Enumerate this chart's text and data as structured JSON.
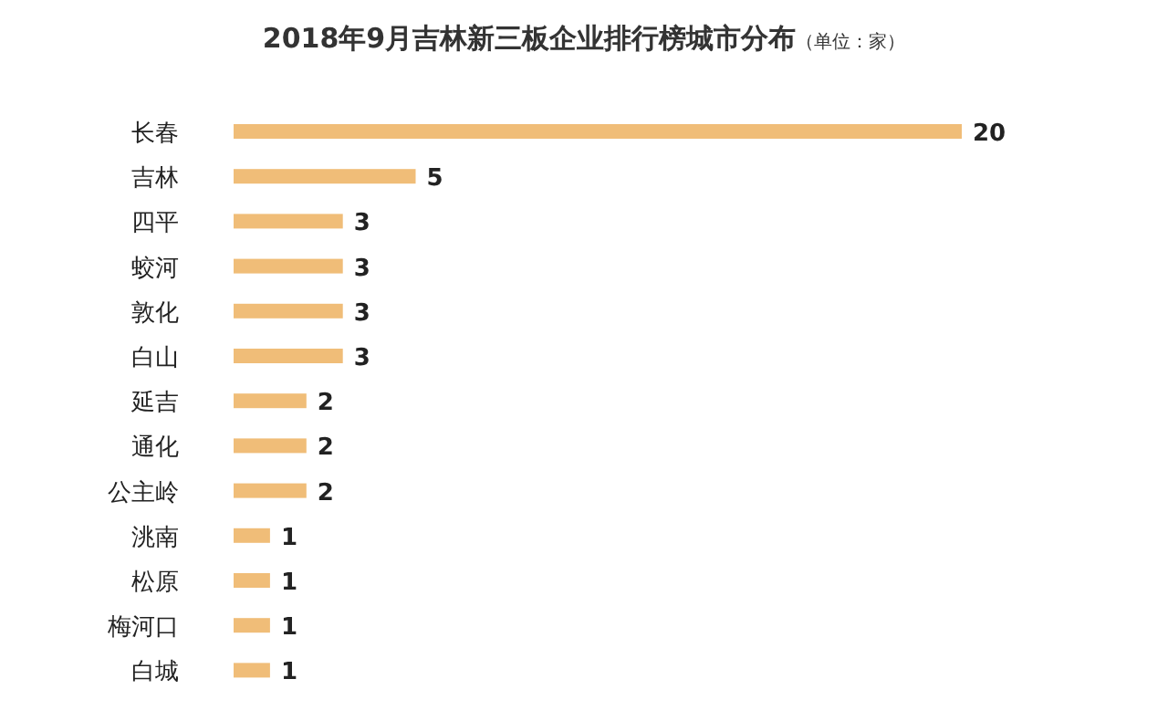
{
  "chart_data": {
    "type": "bar",
    "orientation": "horizontal",
    "title": "2018年9月吉林新三板企业排行榜城市分布",
    "subtitle": "（单位：家）",
    "categories": [
      "长春",
      "吉林",
      "四平",
      "蛟河",
      "敦化",
      "白山",
      "延吉",
      "通化",
      "公主岭",
      "洮南",
      "松原",
      "梅河口",
      "白城"
    ],
    "values": [
      20,
      5,
      3,
      3,
      3,
      3,
      2,
      2,
      2,
      1,
      1,
      1,
      1
    ],
    "color": "#f0bd78",
    "data_labels": true
  }
}
